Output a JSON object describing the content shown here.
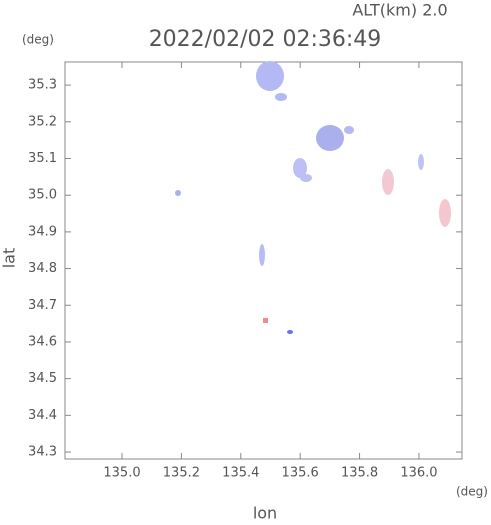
{
  "chart_data": {
    "type": "map-scatter",
    "title": "2022/02/02 02:36:49",
    "subtitle": "ALT(km) 2.0",
    "x_label": "lon",
    "y_label": "lat",
    "x_unit": "(deg)",
    "y_unit": "(deg)",
    "xlim": [
      134.808,
      136.145
    ],
    "ylim": [
      34.281,
      35.363
    ],
    "xticks": [
      {
        "value": 135,
        "label": "135.0"
      },
      135.2,
      135.4,
      135.6,
      135.8,
      {
        "value": 136,
        "label": "136.0"
      }
    ],
    "yticks": [
      34.3,
      34.4,
      34.5,
      34.6,
      34.7,
      34.8,
      34.9,
      {
        "value": 35,
        "label": "35.0"
      },
      35.1,
      35.2,
      35.3
    ]
  }
}
